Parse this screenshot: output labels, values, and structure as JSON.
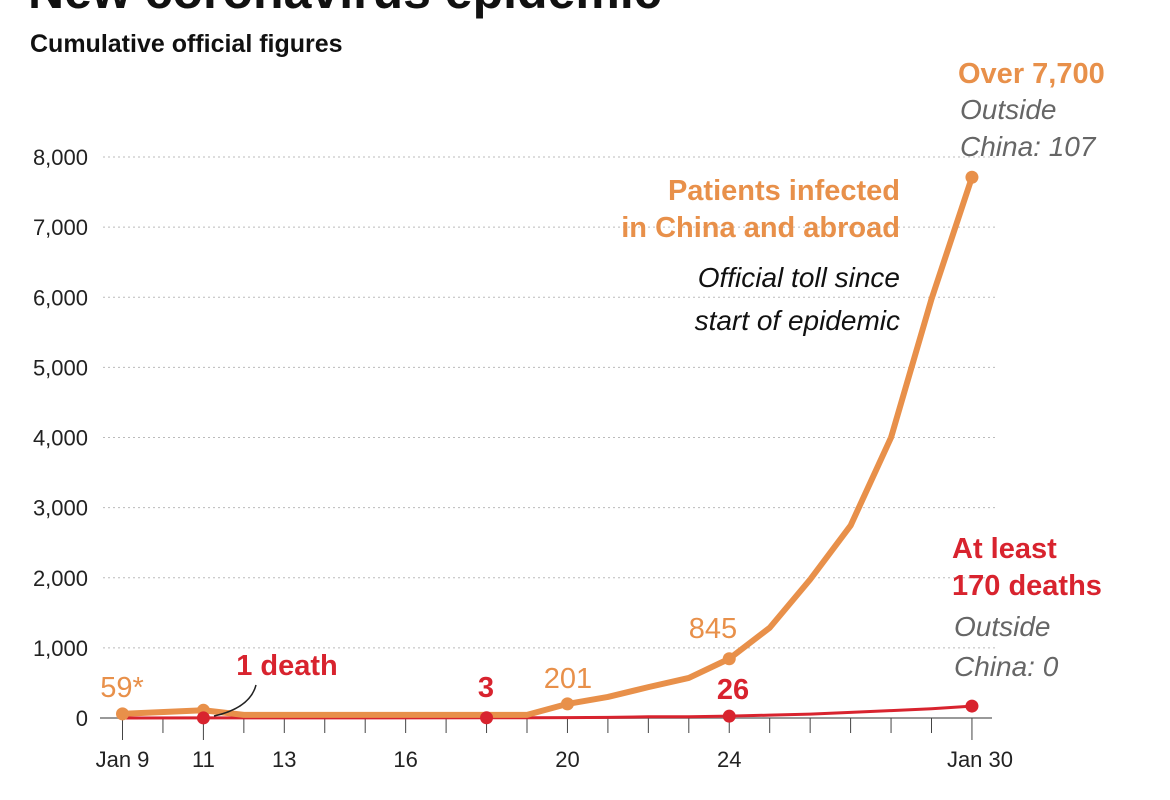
{
  "title": "New coronavirus epidemic",
  "subtitle": "Cumulative official figures",
  "colors": {
    "infected": "#e8904a",
    "deaths": "#d8232e",
    "note": "#666666",
    "grid": "#bbbbbb"
  },
  "chart_data": {
    "type": "line",
    "title": "New coronavirus epidemic",
    "subtitle": "Cumulative official figures",
    "ylim": [
      0,
      8000
    ],
    "xlim": [
      "Jan 9",
      "Jan 30"
    ],
    "grid": true,
    "y_ticks": [
      "0",
      "1,000",
      "2,000",
      "3,000",
      "4,000",
      "5,000",
      "6,000",
      "7,000",
      "8,000"
    ],
    "x_ticks": [
      {
        "day": 9,
        "label": "Jan 9"
      },
      {
        "day": 11,
        "label": "11"
      },
      {
        "day": 13,
        "label": "13"
      },
      {
        "day": 16,
        "label": "16"
      },
      {
        "day": 20,
        "label": "20"
      },
      {
        "day": 24,
        "label": "24"
      },
      {
        "day": 30,
        "label": "Jan  30"
      }
    ],
    "series": [
      {
        "name": "Patients infected in China and abroad",
        "x": [
          9,
          11,
          12,
          13,
          14,
          15,
          16,
          17,
          18,
          19,
          20,
          21,
          22,
          23,
          24,
          25,
          26,
          27,
          28,
          29,
          30
        ],
        "y": [
          59,
          110,
          45,
          45,
          45,
          45,
          45,
          45,
          45,
          45,
          201,
          300,
          440,
          571,
          845,
          1287,
          1975,
          2744,
          4000,
          5974,
          7711
        ],
        "markers": [
          {
            "x": 9,
            "label": "59*"
          },
          {
            "x": 11,
            "label": ""
          },
          {
            "x": 20,
            "label": "201"
          },
          {
            "x": 24,
            "label": "845"
          },
          {
            "x": 30,
            "label": ""
          }
        ]
      },
      {
        "name": "Deaths",
        "x": [
          9,
          11,
          18,
          19,
          20,
          21,
          22,
          23,
          24,
          25,
          26,
          27,
          28,
          29,
          30
        ],
        "y": [
          0,
          1,
          3,
          3,
          6,
          9,
          17,
          18,
          26,
          41,
          56,
          80,
          106,
          132,
          170
        ],
        "markers": [
          {
            "x": 11,
            "label": "1 death"
          },
          {
            "x": 18,
            "label": "3"
          },
          {
            "x": 24,
            "label": "26"
          },
          {
            "x": 30,
            "label": ""
          }
        ]
      }
    ],
    "annotations": {
      "infected_total": "Over 7,700",
      "infected_outside_1": "Outside",
      "infected_outside_2": "China: 107",
      "series_label_1": "Patients infected",
      "series_label_2": "in China and abroad",
      "note_1": "Official toll since",
      "note_2": "start of epidemic",
      "deaths_total_1": "At least",
      "deaths_total_2": "170 deaths",
      "deaths_outside_1": "Outside",
      "deaths_outside_2": "China: 0"
    }
  }
}
